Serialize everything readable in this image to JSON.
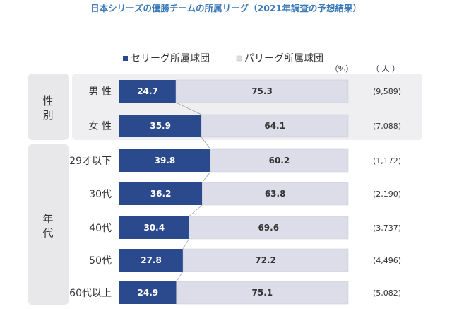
{
  "chart_data": {
    "type": "bar",
    "stacked": true,
    "orientation": "horizontal",
    "title": "日本シリーズの優勝チームの所属リーグ（2021年調査の予想結果）",
    "unit_percent": "（%）",
    "unit_people": "（ 人 ）",
    "legend": [
      "セリーグ所属球団",
      "パリーグ所属球団"
    ],
    "legend_position": "top",
    "groups": [
      {
        "label": "性別",
        "label_chars": [
          "性",
          "別"
        ],
        "rows": [
          0,
          1
        ]
      },
      {
        "label": "年代",
        "label_chars": [
          "年",
          "代"
        ],
        "rows": [
          2,
          3,
          4,
          5,
          6
        ]
      }
    ],
    "categories": [
      "男 性",
      "女 性",
      "29才以下",
      "30代",
      "40代",
      "50代",
      "60代以上"
    ],
    "series": [
      {
        "name": "セリーグ所属球団",
        "color": "#2b4a8e",
        "values": [
          24.7,
          35.9,
          39.8,
          36.2,
          30.4,
          27.8,
          24.9
        ]
      },
      {
        "name": "パリーグ所属球団",
        "color": "#dcdde8",
        "values": [
          75.3,
          64.1,
          60.2,
          63.8,
          69.6,
          72.2,
          75.1
        ]
      }
    ],
    "counts": [
      "(9,589)",
      "(7,088)",
      "(1,172)",
      "(2,190)",
      "(3,737)",
      "(4,496)",
      "(5,082)"
    ],
    "xlim": [
      0,
      100
    ]
  }
}
